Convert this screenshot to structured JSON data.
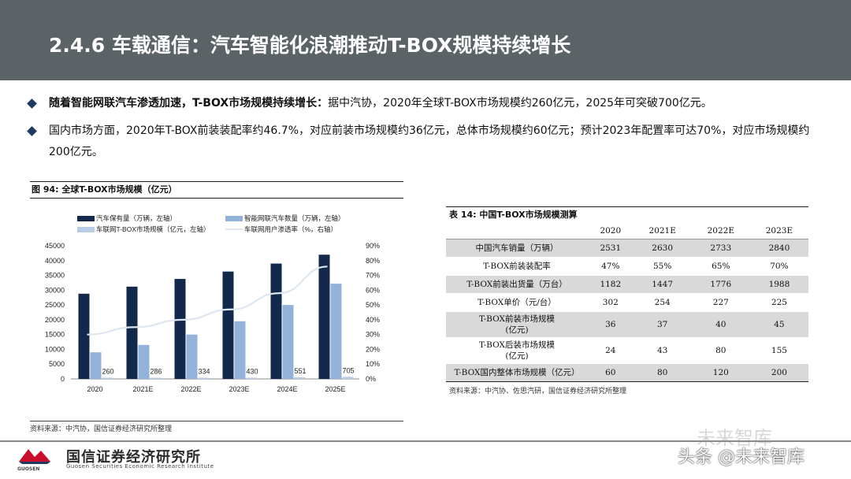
{
  "header": {
    "title": "2.4.6 车载通信：汽车智能化浪潮推动T-BOX规模持续增长"
  },
  "bullets": [
    {
      "bold": "随着智能网联汽车渗透加速，T-BOX市场规模持续增长：",
      "text": "据中汽协，2020年全球T-BOX市场规模约260亿元，2025年可突破700亿元。"
    },
    {
      "bold": "",
      "text": "国内市场方面，2020年T-BOX前装装配率约46.7%，对应前装市场规模约36亿元，总体市场规模约60亿元；预计2023年配置率可达70%，对应市场规模约200亿元。"
    }
  ],
  "figure": {
    "title": "图 94:  全球T-BOX市场规模（亿元）",
    "source": "资料来源：中汽协，国信证券经济研究所整理"
  },
  "chart_data": {
    "type": "bar",
    "categories": [
      "2020",
      "2021E",
      "2022E",
      "2023E",
      "2024E",
      "2025E"
    ],
    "series": [
      {
        "name": "汽车保有量（万辆，左轴）",
        "type": "bar",
        "axis": "left",
        "color": "#13294b",
        "values": [
          28800,
          31200,
          33800,
          36300,
          39000,
          42000
        ]
      },
      {
        "name": "智能网联汽车数量（万辆，左轴）",
        "type": "bar",
        "axis": "left",
        "color": "#93b2d9",
        "values": [
          9000,
          11500,
          15000,
          19500,
          25000,
          32200
        ]
      },
      {
        "name": "车联网T-BOX市场规模（亿元，左轴）",
        "type": "bar",
        "axis": "left",
        "color": "#b7cde6",
        "values": [
          260,
          286,
          334,
          430,
          551,
          705
        ],
        "labels": [
          "260",
          "286",
          "334",
          "430",
          "551",
          "705"
        ]
      },
      {
        "name": "车联网用户渗透率（%，右轴）",
        "type": "line",
        "axis": "right",
        "color": "#dde6f1",
        "values": [
          30,
          35,
          40,
          47,
          58,
          76
        ]
      }
    ],
    "y_left": {
      "min": 0,
      "max": 45000,
      "ticks": [
        "0",
        "5000",
        "10000",
        "15000",
        "20000",
        "25000",
        "30000",
        "35000",
        "40000",
        "45000"
      ]
    },
    "y_right": {
      "min": 0,
      "max": 90,
      "ticks": [
        "0%",
        "10%",
        "20%",
        "30%",
        "40%",
        "50%",
        "60%",
        "70%",
        "80%",
        "90%"
      ]
    },
    "legend": "top",
    "grid": false
  },
  "table": {
    "title": "表 14:  中国T-BOX市场规模测算",
    "headers": [
      "",
      "2020",
      "2021E",
      "2022E",
      "2023E"
    ],
    "rows": [
      {
        "label": "中国汽车销量（万辆）",
        "values": [
          "2531",
          "2630",
          "2733",
          "2840"
        ]
      },
      {
        "label": "T-BOX前装装配率",
        "values": [
          "47%",
          "55%",
          "65%",
          "70%"
        ]
      },
      {
        "label": "T-BOX前装出货量（万台）",
        "values": [
          "1182",
          "1447",
          "1776",
          "1988"
        ]
      },
      {
        "label": "T-BOX单价（元/台）",
        "values": [
          "302",
          "254",
          "227",
          "225"
        ]
      },
      {
        "label": "T-BOX前装市场规模\n(亿元)",
        "values": [
          "36",
          "37",
          "40",
          "45"
        ]
      },
      {
        "label": "T-BOX后装市场规模\n(亿元)",
        "values": [
          "24",
          "43",
          "80",
          "155"
        ]
      },
      {
        "label": "T-BOX国内整体市场规模（亿元）",
        "values": [
          "60",
          "80",
          "120",
          "200"
        ]
      }
    ],
    "source": "资料来源：中汽协、佐思汽研，国信证券经济研究所整理"
  },
  "footer": {
    "logo_cn": "国信证券经济研究所",
    "logo_en": "Guosen Securities Economic Research Institute",
    "logo_short": "GUOSEN",
    "watermark_top": "未来智库",
    "watermark": "头条 @未来智库"
  }
}
